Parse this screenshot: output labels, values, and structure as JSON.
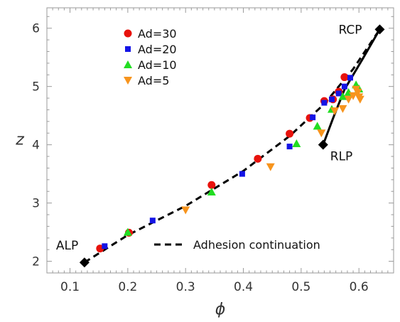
{
  "chart_data": {
    "type": "scatter",
    "title": "",
    "xlabel": "ϕ",
    "ylabel": "z",
    "xlim": [
      0.06,
      0.66
    ],
    "ylim": [
      1.8,
      6.35
    ],
    "x_ticks": [
      "0.1",
      "0.2",
      "0.3",
      "0.4",
      "0.5",
      "0.6"
    ],
    "y_ticks": [
      "2",
      "3",
      "4",
      "5",
      "6"
    ],
    "grid": false,
    "legend_position": "top-left",
    "series": [
      {
        "name": "Ad=30",
        "marker": "circle",
        "color": "#e8120c",
        "points": [
          [
            0.152,
            2.22
          ],
          [
            0.202,
            2.49
          ],
          [
            0.345,
            3.31
          ],
          [
            0.425,
            3.76
          ],
          [
            0.48,
            4.19
          ],
          [
            0.515,
            4.46
          ],
          [
            0.54,
            4.75
          ],
          [
            0.555,
            4.78
          ],
          [
            0.565,
            4.91
          ],
          [
            0.575,
            5.16
          ]
        ]
      },
      {
        "name": "Ad=20",
        "marker": "square",
        "color": "#1414e6",
        "points": [
          [
            0.16,
            2.26
          ],
          [
            0.243,
            2.7
          ],
          [
            0.398,
            3.5
          ],
          [
            0.48,
            3.97
          ],
          [
            0.52,
            4.47
          ],
          [
            0.54,
            4.72
          ],
          [
            0.553,
            4.78
          ],
          [
            0.565,
            4.88
          ],
          [
            0.575,
            5.0
          ],
          [
            0.585,
            5.15
          ]
        ]
      },
      {
        "name": "Ad=10",
        "marker": "triangle-up",
        "color": "#22dd22",
        "points": [
          [
            0.2,
            2.5
          ],
          [
            0.345,
            3.19
          ],
          [
            0.492,
            4.02
          ],
          [
            0.528,
            4.32
          ],
          [
            0.553,
            4.61
          ],
          [
            0.572,
            4.83
          ],
          [
            0.582,
            4.9
          ],
          [
            0.595,
            5.03
          ],
          [
            0.6,
            4.96
          ]
        ]
      },
      {
        "name": "Ad=5",
        "marker": "triangle-right",
        "color": "#f7941d",
        "points": [
          [
            0.3,
            2.88
          ],
          [
            0.447,
            3.62
          ],
          [
            0.535,
            4.2
          ],
          [
            0.558,
            4.58
          ],
          [
            0.572,
            4.62
          ],
          [
            0.582,
            4.78
          ],
          [
            0.59,
            4.84
          ],
          [
            0.595,
            4.95
          ],
          [
            0.6,
            4.82
          ],
          [
            0.602,
            4.78
          ],
          [
            0.598,
            4.9
          ]
        ]
      }
    ],
    "lines": [
      {
        "name": "Adhesion continuation",
        "style": "dashed",
        "color": "#000000",
        "points": [
          [
            0.125,
            1.98
          ],
          [
            0.2,
            2.45
          ],
          [
            0.3,
            2.95
          ],
          [
            0.4,
            3.55
          ],
          [
            0.48,
            4.15
          ],
          [
            0.54,
            4.7
          ],
          [
            0.59,
            5.3
          ],
          [
            0.636,
            5.98
          ]
        ]
      },
      {
        "style": "solid",
        "color": "#000000",
        "points": [
          [
            0.538,
            4.0
          ],
          [
            0.555,
            4.45
          ],
          [
            0.575,
            4.95
          ],
          [
            0.605,
            5.45
          ],
          [
            0.636,
            5.98
          ]
        ]
      }
    ],
    "annotated_points": [
      {
        "label": "ALP",
        "x": 0.125,
        "y": 1.98
      },
      {
        "label": "RCP",
        "x": 0.636,
        "y": 5.98
      },
      {
        "label": "RLP",
        "x": 0.538,
        "y": 4.0
      }
    ]
  }
}
